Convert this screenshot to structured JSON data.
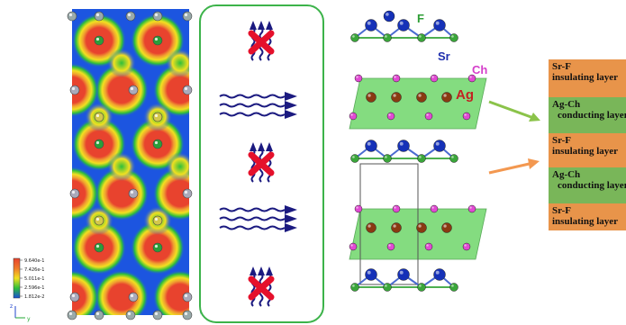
{
  "colorbar": {
    "ticks": [
      "9.640e-1",
      "7.426e-1",
      "5.011e-1",
      "2.596e-1",
      "1.812e-2"
    ],
    "colors": [
      "#e8432e",
      "#f07a2a",
      "#f2e020",
      "#2fbf3a",
      "#1a4fd8"
    ]
  },
  "axes": {
    "z": "z",
    "y": "y"
  },
  "atom_labels": {
    "ag": "Ag",
    "ch": "Ch",
    "f": "F",
    "sr": "Sr"
  },
  "colors": {
    "density_bg": "#1c55e0",
    "panel_border": "#3cb34a",
    "arrow_blue": "#1b1a80",
    "block_red": "#e5102b",
    "sr_atom": "#1531b8",
    "f_atom": "#3aa63a",
    "ch_atom": "#e14ad3",
    "ag_atom": "#8a3a12",
    "polyhedron": "#6fd66a",
    "arrow_green": "#8bc34a",
    "arrow_orange": "#f39850"
  },
  "layers": [
    {
      "kind": "insulating",
      "line1": "Sr-F",
      "line2": "insulating layer"
    },
    {
      "kind": "conducting",
      "line1": "Ag-Ch",
      "line2": "conducting layer"
    },
    {
      "kind": "insulating",
      "line1": "Sr-F",
      "line2": "insulating layer"
    },
    {
      "kind": "conducting",
      "line1": "Ag-Ch",
      "line2": "conducting layer"
    },
    {
      "kind": "insulating",
      "line1": "Sr-F",
      "line2": "insulating layer"
    }
  ]
}
